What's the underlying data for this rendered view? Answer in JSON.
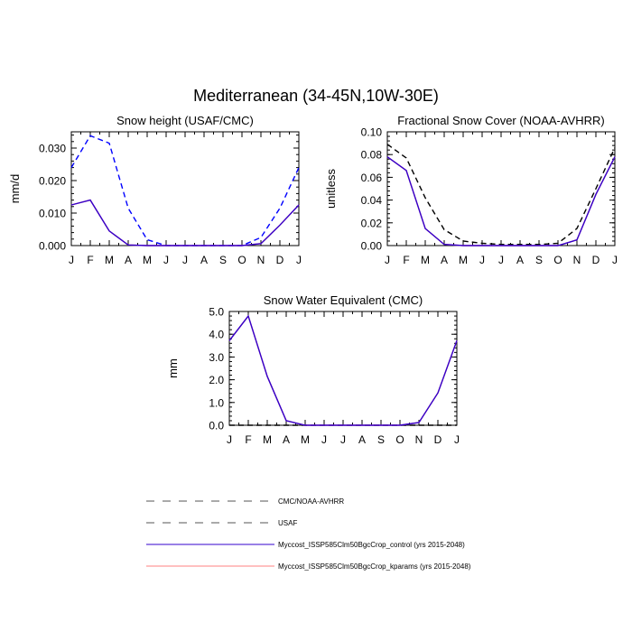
{
  "figure": {
    "title": "Mediterranean (34-45N,10W-30E)"
  },
  "colors": {
    "control": "#3300cc",
    "kparams": "#ff8080",
    "obs_snow_cover": "#000000",
    "usaf": "#0000ff",
    "zero_line": "#000000"
  },
  "chart_data": [
    {
      "type": "line",
      "title": "Snow height (USAF/CMC)",
      "xlabel": "",
      "ylabel": "mm/d",
      "categories": [
        "J",
        "F",
        "M",
        "A",
        "M",
        "J",
        "J",
        "A",
        "S",
        "O",
        "N",
        "D",
        "J"
      ],
      "ylim": [
        0,
        0.035
      ],
      "yticks": [
        "0.000",
        "0.010",
        "0.020",
        "0.030"
      ],
      "series": [
        {
          "name": "USAF",
          "style": "dashed",
          "color_key": "usaf",
          "values": [
            0.024,
            0.0338,
            0.0315,
            0.0115,
            0.0018,
            0.0,
            0.0,
            0.0,
            0.0,
            0.0,
            0.0025,
            0.0115,
            0.024
          ]
        },
        {
          "name": "Myccost_ISSP585Clm50BgcCrop_kparams (yrs 2015-2048)",
          "style": "solid",
          "color_key": "kparams",
          "values": [
            0.0125,
            0.014,
            0.0045,
            0.0002,
            0.0,
            0.0,
            0.0,
            0.0,
            0.0,
            0.0,
            0.0006,
            0.0063,
            0.0125
          ]
        },
        {
          "name": "Myccost_ISSP585Clm50BgcCrop_control (yrs 2015-2048)",
          "style": "solid",
          "color_key": "control",
          "values": [
            0.0125,
            0.014,
            0.0045,
            0.0002,
            0.0,
            0.0,
            0.0,
            0.0,
            0.0,
            0.0,
            0.0006,
            0.0063,
            0.0125
          ]
        }
      ]
    },
    {
      "type": "line",
      "title": "Fractional Snow Cover (NOAA-AVHRR)",
      "xlabel": "",
      "ylabel": "unitless",
      "categories": [
        "J",
        "F",
        "M",
        "A",
        "M",
        "J",
        "J",
        "A",
        "S",
        "O",
        "N",
        "D",
        "J"
      ],
      "ylim": [
        0,
        0.1
      ],
      "yticks": [
        "0.00",
        "0.02",
        "0.04",
        "0.06",
        "0.08",
        "0.10"
      ],
      "series": [
        {
          "name": "CMC/NOAA-AVHRR",
          "style": "dashed",
          "color_key": "obs_snow_cover",
          "values": [
            0.089,
            0.077,
            0.042,
            0.014,
            0.004,
            0.002,
            0.001,
            0.001,
            0.001,
            0.002,
            0.015,
            0.05,
            0.086
          ]
        },
        {
          "name": "Myccost_ISSP585Clm50BgcCrop_kparams (yrs 2015-2048)",
          "style": "solid",
          "color_key": "kparams",
          "values": [
            0.078,
            0.066,
            0.015,
            0.001,
            0.0,
            0.0,
            0.0,
            0.0,
            0.0,
            0.0,
            0.005,
            0.045,
            0.078
          ]
        },
        {
          "name": "Myccost_ISSP585Clm50BgcCrop_control (yrs 2015-2048)",
          "style": "solid",
          "color_key": "control",
          "values": [
            0.078,
            0.066,
            0.015,
            0.001,
            0.0,
            0.0,
            0.0,
            0.0,
            0.0,
            0.0,
            0.005,
            0.045,
            0.078
          ]
        }
      ]
    },
    {
      "type": "line",
      "title": "Snow Water Equivalent (CMC)",
      "xlabel": "",
      "ylabel": "mm",
      "categories": [
        "J",
        "F",
        "M",
        "A",
        "M",
        "J",
        "J",
        "A",
        "S",
        "O",
        "N",
        "D",
        "J"
      ],
      "ylim": [
        0,
        5
      ],
      "yticks": [
        "0.0",
        "1.0",
        "2.0",
        "3.0",
        "4.0",
        "5.0"
      ],
      "series": [
        {
          "name": "CMC",
          "style": "dashed",
          "color_key": "zero_line",
          "values": [
            0,
            0,
            0,
            0,
            0,
            0,
            0,
            0,
            0,
            0,
            0,
            0,
            0
          ]
        },
        {
          "name": "Myccost_ISSP585Clm50BgcCrop_kparams (yrs 2015-2048)",
          "style": "solid",
          "color_key": "kparams",
          "values": [
            3.72,
            4.8,
            2.15,
            0.2,
            0.0,
            0.0,
            0.0,
            0.0,
            0.0,
            0.0,
            0.12,
            1.42,
            3.72
          ]
        },
        {
          "name": "Myccost_ISSP585Clm50BgcCrop_control (yrs 2015-2048)",
          "style": "solid",
          "color_key": "control",
          "values": [
            3.72,
            4.8,
            2.15,
            0.2,
            0.0,
            0.0,
            0.0,
            0.0,
            0.0,
            0.0,
            0.12,
            1.42,
            3.72
          ]
        }
      ]
    }
  ],
  "legend": {
    "items": [
      {
        "label": "CMC/NOAA-AVHRR",
        "style": "dashed",
        "color": "#000000"
      },
      {
        "label": "USAF",
        "style": "dashed",
        "color": "#000000"
      },
      {
        "label": "Myccost_ISSP585Clm50BgcCrop_control (yrs 2015-2048)",
        "style": "solid",
        "color": "#3300cc"
      },
      {
        "label": "Myccost_ISSP585Clm50BgcCrop_kparams (yrs 2015-2048)",
        "style": "solid",
        "color": "#ff8080"
      }
    ]
  }
}
